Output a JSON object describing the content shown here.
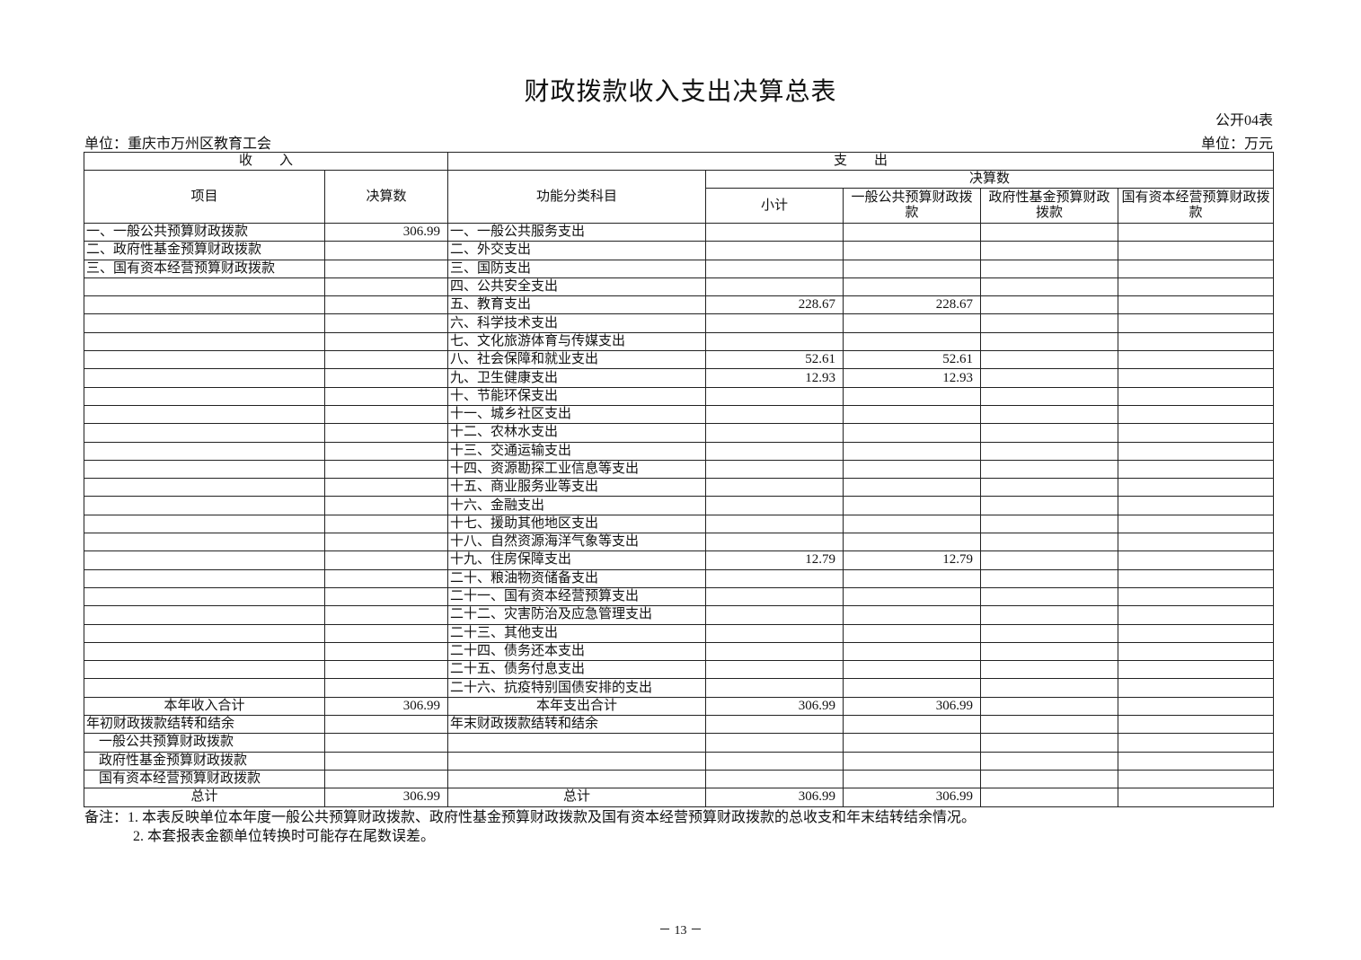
{
  "title": "财政拨款收入支出决算总表",
  "form_no": "公开04表",
  "unit_org": "单位：重庆市万州区教育工会",
  "unit_money": "单位：万元",
  "headers": {
    "income": "收　　入",
    "expense": "支　　出",
    "item": "项目",
    "amount": "决算数",
    "func_subject": "功能分类科目",
    "final_amount": "决算数",
    "subtotal": "小计",
    "general": "一般公共预算财政拨款",
    "govfund": "政府性基金预算财政拨款",
    "soe": "国有资本经营预算财政拨款"
  },
  "rows": [
    {
      "inc": "一、一般公共预算财政拨款",
      "inc_amt": "306.99",
      "exp": "一、一般公共服务支出",
      "sub": "",
      "gen": "",
      "gov": "",
      "soe": ""
    },
    {
      "inc": "二、政府性基金预算财政拨款",
      "inc_amt": "",
      "exp": "二、外交支出",
      "sub": "",
      "gen": "",
      "gov": "",
      "soe": ""
    },
    {
      "inc": "三、国有资本经营预算财政拨款",
      "inc_amt": "",
      "exp": "三、国防支出",
      "sub": "",
      "gen": "",
      "gov": "",
      "soe": ""
    },
    {
      "inc": "",
      "inc_amt": "",
      "exp": "四、公共安全支出",
      "sub": "",
      "gen": "",
      "gov": "",
      "soe": ""
    },
    {
      "inc": "",
      "inc_amt": "",
      "exp": "五、教育支出",
      "sub": "228.67",
      "gen": "228.67",
      "gov": "",
      "soe": ""
    },
    {
      "inc": "",
      "inc_amt": "",
      "exp": "六、科学技术支出",
      "sub": "",
      "gen": "",
      "gov": "",
      "soe": ""
    },
    {
      "inc": "",
      "inc_amt": "",
      "exp": "七、文化旅游体育与传媒支出",
      "sub": "",
      "gen": "",
      "gov": "",
      "soe": ""
    },
    {
      "inc": "",
      "inc_amt": "",
      "exp": "八、社会保障和就业支出",
      "sub": "52.61",
      "gen": "52.61",
      "gov": "",
      "soe": ""
    },
    {
      "inc": "",
      "inc_amt": "",
      "exp": "九、卫生健康支出",
      "sub": "12.93",
      "gen": "12.93",
      "gov": "",
      "soe": ""
    },
    {
      "inc": "",
      "inc_amt": "",
      "exp": "十、节能环保支出",
      "sub": "",
      "gen": "",
      "gov": "",
      "soe": ""
    },
    {
      "inc": "",
      "inc_amt": "",
      "exp": "十一、城乡社区支出",
      "sub": "",
      "gen": "",
      "gov": "",
      "soe": ""
    },
    {
      "inc": "",
      "inc_amt": "",
      "exp": "十二、农林水支出",
      "sub": "",
      "gen": "",
      "gov": "",
      "soe": ""
    },
    {
      "inc": "",
      "inc_amt": "",
      "exp": "十三、交通运输支出",
      "sub": "",
      "gen": "",
      "gov": "",
      "soe": ""
    },
    {
      "inc": "",
      "inc_amt": "",
      "exp": "十四、资源勘探工业信息等支出",
      "sub": "",
      "gen": "",
      "gov": "",
      "soe": ""
    },
    {
      "inc": "",
      "inc_amt": "",
      "exp": "十五、商业服务业等支出",
      "sub": "",
      "gen": "",
      "gov": "",
      "soe": ""
    },
    {
      "inc": "",
      "inc_amt": "",
      "exp": "十六、金融支出",
      "sub": "",
      "gen": "",
      "gov": "",
      "soe": ""
    },
    {
      "inc": "",
      "inc_amt": "",
      "exp": "十七、援助其他地区支出",
      "sub": "",
      "gen": "",
      "gov": "",
      "soe": ""
    },
    {
      "inc": "",
      "inc_amt": "",
      "exp": "十八、自然资源海洋气象等支出",
      "sub": "",
      "gen": "",
      "gov": "",
      "soe": ""
    },
    {
      "inc": "",
      "inc_amt": "",
      "exp": "十九、住房保障支出",
      "sub": "12.79",
      "gen": "12.79",
      "gov": "",
      "soe": ""
    },
    {
      "inc": "",
      "inc_amt": "",
      "exp": "二十、粮油物资储备支出",
      "sub": "",
      "gen": "",
      "gov": "",
      "soe": ""
    },
    {
      "inc": "",
      "inc_amt": "",
      "exp": "二十一、国有资本经营预算支出",
      "sub": "",
      "gen": "",
      "gov": "",
      "soe": ""
    },
    {
      "inc": "",
      "inc_amt": "",
      "exp": "二十二、灾害防治及应急管理支出",
      "sub": "",
      "gen": "",
      "gov": "",
      "soe": ""
    },
    {
      "inc": "",
      "inc_amt": "",
      "exp": "二十三、其他支出",
      "sub": "",
      "gen": "",
      "gov": "",
      "soe": ""
    },
    {
      "inc": "",
      "inc_amt": "",
      "exp": "二十四、债务还本支出",
      "sub": "",
      "gen": "",
      "gov": "",
      "soe": ""
    },
    {
      "inc": "",
      "inc_amt": "",
      "exp": "二十五、债务付息支出",
      "sub": "",
      "gen": "",
      "gov": "",
      "soe": ""
    },
    {
      "inc": "",
      "inc_amt": "",
      "exp": "二十六、抗疫特别国债安排的支出",
      "sub": "",
      "gen": "",
      "gov": "",
      "soe": ""
    },
    {
      "inc": "本年收入合计",
      "inc_amt": "306.99",
      "exp": "本年支出合计",
      "sub": "306.99",
      "gen": "306.99",
      "gov": "",
      "soe": "",
      "style": "center"
    },
    {
      "inc": "年初财政拨款结转和结余",
      "inc_amt": "",
      "exp": "年末财政拨款结转和结余",
      "sub": "",
      "gen": "",
      "gov": "",
      "soe": ""
    },
    {
      "inc": "一般公共预算财政拨款",
      "inc_amt": "",
      "exp": "",
      "sub": "",
      "gen": "",
      "gov": "",
      "soe": "",
      "style": "indent"
    },
    {
      "inc": "政府性基金预算财政拨款",
      "inc_amt": "",
      "exp": "",
      "sub": "",
      "gen": "",
      "gov": "",
      "soe": "",
      "style": "indent"
    },
    {
      "inc": "国有资本经营预算财政拨款",
      "inc_amt": "",
      "exp": "",
      "sub": "",
      "gen": "",
      "gov": "",
      "soe": "",
      "style": "indent"
    },
    {
      "inc": "总计",
      "inc_amt": "306.99",
      "exp": "总计",
      "sub": "306.99",
      "gen": "306.99",
      "gov": "",
      "soe": "",
      "style": "center"
    }
  ],
  "notes": [
    "备注：1. 本表反映单位本年度一般公共预算财政拨款、政府性基金预算财政拨款及国有资本经营预算财政拨款的总收支和年末结转结余情况。",
    "2. 本套报表金额单位转换时可能存在尾数误差。"
  ],
  "page_number": "－ 13 －"
}
